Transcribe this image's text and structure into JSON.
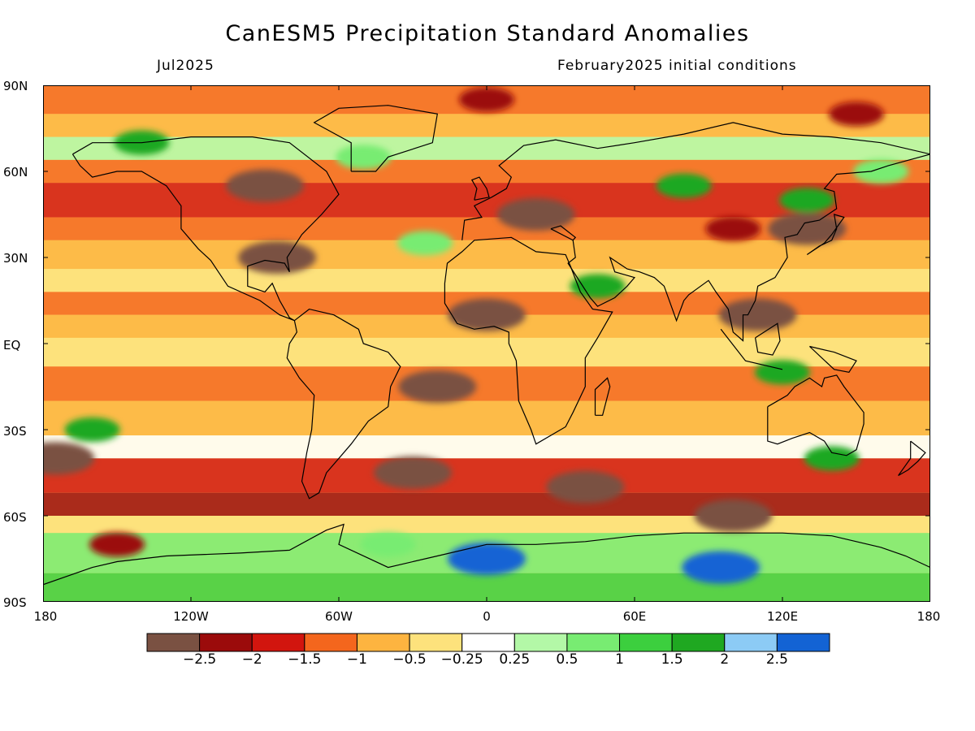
{
  "title": "CanESM5 Precipitation Standard Anomalies",
  "subtitle_left": "Jul2025",
  "subtitle_right": "February2025 initial conditions",
  "map": {
    "projection": "equirectangular",
    "lon_range": [
      -180,
      180
    ],
    "lat_range": [
      -90,
      90
    ],
    "lat_labels": [
      "90N",
      "60N",
      "30N",
      "EQ",
      "30S",
      "60S",
      "90S"
    ],
    "lon_labels": [
      "180",
      "120W",
      "60W",
      "0",
      "60E",
      "120E",
      "180"
    ],
    "field": "standardized precipitation anomaly",
    "background": "#ffffff",
    "coastline_color": "#000000"
  },
  "legend": {
    "colors": [
      "#7a5142",
      "#9b0b0b",
      "#d2150e",
      "#f4661d",
      "#fdb440",
      "#fde27c",
      "#ffffff",
      "#b3f8a7",
      "#78ec72",
      "#3ccf3e",
      "#1fa821",
      "#8ccbf5",
      "#1363d4"
    ],
    "tick_labels": [
      "−2.5",
      "−2",
      "−1.5",
      "−1",
      "−0.5",
      "−0.25",
      "0.25",
      "0.5",
      "1",
      "1.5",
      "2",
      "2.5"
    ],
    "tick_values": [
      -2.5,
      -2,
      -1.5,
      -1,
      -0.5,
      -0.25,
      0.25,
      0.5,
      1,
      1.5,
      2,
      2.5
    ]
  },
  "regions": [
    {
      "kind": "dry",
      "level": -3,
      "lat": 45,
      "lon": 20
    },
    {
      "kind": "dry",
      "level": -3,
      "lat": 55,
      "lon": -90
    },
    {
      "kind": "dry",
      "level": -3,
      "lat": 30,
      "lon": -85
    },
    {
      "kind": "dry",
      "level": -3,
      "lat": 10,
      "lon": 0
    },
    {
      "kind": "dry",
      "level": -3,
      "lat": -15,
      "lon": -20
    },
    {
      "kind": "dry",
      "level": -3,
      "lat": -45,
      "lon": -30
    },
    {
      "kind": "dry",
      "level": -3,
      "lat": -50,
      "lon": 40
    },
    {
      "kind": "dry",
      "level": -3,
      "lat": -60,
      "lon": 100
    },
    {
      "kind": "dry",
      "level": -3,
      "lat": 10,
      "lon": 110
    },
    {
      "kind": "dry",
      "level": -3,
      "lat": 40,
      "lon": 130
    },
    {
      "kind": "dry",
      "level": -3,
      "lat": -40,
      "lon": -175
    },
    {
      "kind": "dry",
      "level": -2,
      "lat": 85,
      "lon": 0
    },
    {
      "kind": "dry",
      "level": -2,
      "lat": 80,
      "lon": 150
    },
    {
      "kind": "dry",
      "level": -2,
      "lat": 40,
      "lon": 100
    },
    {
      "kind": "dry",
      "level": -2,
      "lat": -70,
      "lon": -150
    },
    {
      "kind": "wet",
      "level": 2,
      "lat": 70,
      "lon": -140
    },
    {
      "kind": "wet",
      "level": 2,
      "lat": 55,
      "lon": 80
    },
    {
      "kind": "wet",
      "level": 2,
      "lat": 50,
      "lon": 130
    },
    {
      "kind": "wet",
      "level": 2,
      "lat": 20,
      "lon": 45
    },
    {
      "kind": "wet",
      "level": 2,
      "lat": -10,
      "lon": 120
    },
    {
      "kind": "wet",
      "level": 2,
      "lat": -30,
      "lon": -160
    },
    {
      "kind": "wet",
      "level": 2,
      "lat": -40,
      "lon": 140
    },
    {
      "kind": "wet",
      "level": 3,
      "lat": -75,
      "lon": 0
    },
    {
      "kind": "wet",
      "level": 3,
      "lat": -78,
      "lon": 95
    },
    {
      "kind": "wet",
      "level": 1,
      "lat": -70,
      "lon": -40
    },
    {
      "kind": "wet",
      "level": 1,
      "lat": 65,
      "lon": -50
    },
    {
      "kind": "wet",
      "level": 1,
      "lat": 35,
      "lon": -25
    },
    {
      "kind": "wet",
      "level": 1,
      "lat": 60,
      "lon": 160
    }
  ]
}
